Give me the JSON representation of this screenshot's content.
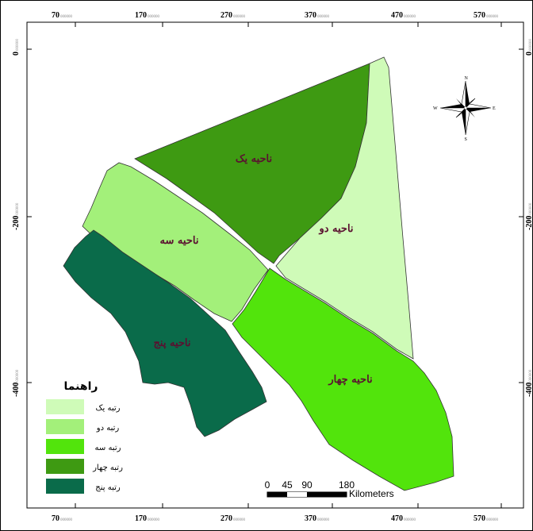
{
  "grid": {
    "x_ticks": [
      {
        "major": "70",
        "minor": "000000"
      },
      {
        "major": "170",
        "minor": "000000"
      },
      {
        "major": "270",
        "minor": "000000"
      },
      {
        "major": "370",
        "minor": "000000"
      },
      {
        "major": "470",
        "minor": "000000"
      },
      {
        "major": "570",
        "minor": "000000"
      }
    ],
    "y_ticks": [
      {
        "major": "0",
        "minor": "000000"
      },
      {
        "major": "-200",
        "minor": "000000"
      },
      {
        "major": "-400",
        "minor": "000000"
      }
    ]
  },
  "regions": [
    {
      "id": "yek",
      "label": "ناحیه یک",
      "color": "#3e9a12"
    },
    {
      "id": "do",
      "label": "ناحیه دو",
      "color": "#cffbb8"
    },
    {
      "id": "se",
      "label": "ناحیه سه",
      "color": "#a3f07a"
    },
    {
      "id": "chahar",
      "label": "ناحیه چهار",
      "color": "#52e40c"
    },
    {
      "id": "panj",
      "label": "ناحیه پنج",
      "color": "#0a6b4a"
    }
  ],
  "legend": {
    "title": "راهنما",
    "items": [
      {
        "label": "رتبه یک",
        "color": "#cffbb8"
      },
      {
        "label": "رتبه دو",
        "color": "#a3f07a"
      },
      {
        "label": "رتبه سه",
        "color": "#52e40c"
      },
      {
        "label": "رتبه چهار",
        "color": "#3e9a12"
      },
      {
        "label": "رتبه پنج",
        "color": "#0a6b4a"
      }
    ]
  },
  "scale_bar": {
    "labels": [
      "0",
      "45",
      "90",
      "180"
    ],
    "unit": "Kilometers"
  },
  "north_arrow": {
    "n": "N",
    "s": "S",
    "e": "E",
    "w": "W"
  }
}
